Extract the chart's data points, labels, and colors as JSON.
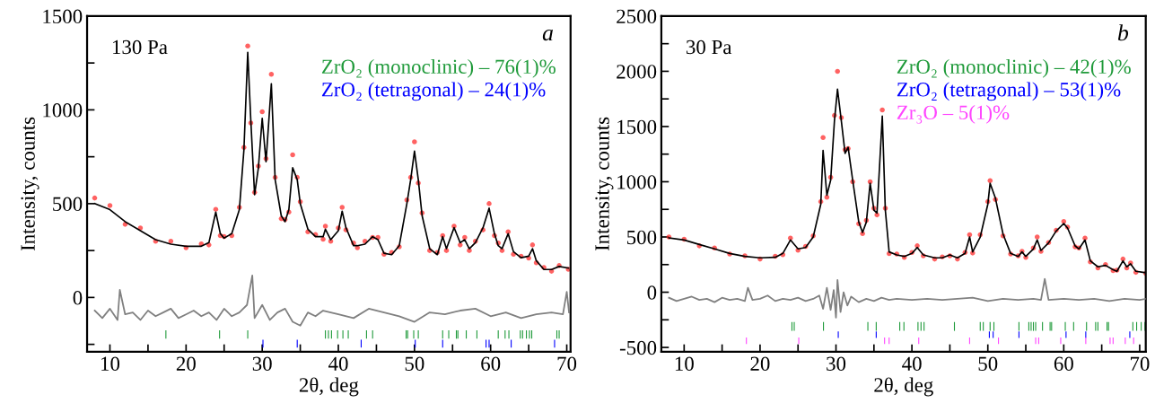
{
  "chart_data": [
    {
      "type": "scatter",
      "xlabel": "2θ, deg",
      "ylabel": "Intensity, counts",
      "annotations": [
        "130 Pa",
        "a"
      ],
      "xlim": [
        7,
        70.5
      ],
      "ylim": [
        -290,
        1500
      ],
      "xticks": [
        10,
        {
          "value": 15,
          "label": null
        },
        20,
        {
          "value": 25,
          "label": null
        },
        30,
        {
          "value": 35,
          "label": null
        },
        40,
        {
          "value": 45,
          "label": null
        },
        50,
        {
          "value": 55,
          "label": null
        },
        60,
        {
          "value": 65,
          "label": null
        },
        70
      ],
      "yticks": [
        {
          "value": -250,
          "label": null
        },
        0,
        {
          "value": 250,
          "label": null
        },
        500,
        {
          "value": 750,
          "label": null
        },
        1000,
        {
          "value": 1250,
          "label": null
        },
        1500
      ],
      "grid": false,
      "legend": "top right",
      "series": [
        {
          "marker": "circle",
          "color": "#ff2020",
          "x": [
            8,
            10,
            12,
            14,
            16,
            18,
            20,
            22,
            23,
            23.9,
            24.5,
            25,
            26,
            27,
            27.6,
            28.1,
            28.5,
            29,
            29.5,
            30,
            30.5,
            31.2,
            31.7,
            32.5,
            33,
            33.5,
            34,
            34.6,
            35,
            36,
            37,
            38,
            38.3,
            39,
            40,
            40.5,
            41,
            42,
            42.5,
            43.5,
            44.5,
            45.2,
            46,
            47,
            48,
            49,
            49.5,
            50,
            50.5,
            51,
            52,
            53,
            53.7,
            54.2,
            55.2,
            56,
            56.6,
            57.2,
            58,
            59,
            59.8,
            60.5,
            61,
            61.5,
            62.3,
            63,
            64,
            65,
            65.5,
            66,
            67,
            68,
            69,
            70.2
          ],
          "values": [
            530,
            490,
            390,
            370,
            300,
            300,
            265,
            285,
            280,
            470,
            330,
            325,
            330,
            480,
            800,
            1340,
            930,
            560,
            700,
            990,
            740,
            1190,
            640,
            420,
            415,
            455,
            760,
            640,
            510,
            350,
            335,
            310,
            380,
            300,
            370,
            480,
            360,
            290,
            265,
            300,
            320,
            320,
            230,
            240,
            270,
            520,
            640,
            830,
            610,
            450,
            250,
            240,
            330,
            250,
            380,
            280,
            320,
            250,
            300,
            360,
            500,
            330,
            290,
            250,
            350,
            230,
            220,
            210,
            280,
            185,
            160,
            140,
            170,
            150
          ]
        },
        {
          "type": "line",
          "marker": "none",
          "line_style": "solid",
          "color": "#000000",
          "x": [
            8,
            10,
            12,
            14,
            16,
            18,
            20,
            22,
            23,
            23.9,
            24.5,
            25,
            26,
            27,
            27.6,
            28.1,
            28.5,
            29,
            29.5,
            30,
            30.5,
            31.2,
            31.7,
            32.5,
            33,
            33.5,
            34,
            34.6,
            35,
            36,
            37,
            38,
            38.3,
            39,
            40,
            40.5,
            41,
            42,
            42.5,
            43.5,
            44.5,
            45.2,
            46,
            47,
            48,
            49,
            49.5,
            50,
            50.5,
            51,
            52,
            53,
            53.7,
            54.2,
            55.2,
            56,
            56.6,
            57.2,
            58,
            59,
            59.8,
            60.5,
            61,
            61.5,
            62.3,
            63,
            64,
            65,
            65.5,
            66,
            67,
            68,
            69,
            70.2
          ],
          "values": [
            500,
            468,
            404,
            356,
            308,
            284,
            273,
            273,
            292,
            455,
            340,
            316,
            340,
            468,
            788,
            1307,
            947,
            548,
            692,
            955,
            724,
            1139,
            628,
            436,
            404,
            468,
            692,
            628,
            500,
            364,
            324,
            324,
            364,
            308,
            356,
            460,
            372,
            276,
            276,
            284,
            324,
            308,
            236,
            228,
            276,
            500,
            628,
            780,
            628,
            436,
            260,
            228,
            324,
            260,
            372,
            292,
            308,
            260,
            292,
            372,
            476,
            340,
            276,
            260,
            340,
            244,
            212,
            220,
            260,
            196,
            149,
            149,
            165,
            157
          ]
        },
        {
          "type": "line",
          "marker": "none",
          "line_style": "solid",
          "color": "#808080",
          "x": [
            8,
            9,
            10,
            11,
            11.3,
            12,
            13,
            14,
            15,
            16,
            17,
            18,
            19,
            20,
            21,
            22,
            23,
            24,
            25,
            26,
            27,
            28,
            28.7,
            29,
            30,
            31,
            32,
            33,
            34,
            35,
            36,
            37,
            38,
            40,
            42,
            44,
            46,
            48,
            50,
            52,
            54,
            56,
            58,
            60,
            62,
            64,
            66,
            68,
            69.5,
            70,
            70.3
          ],
          "values": [
            -70,
            -110,
            -60,
            -120,
            40,
            -90,
            -80,
            -120,
            -70,
            -100,
            -80,
            -60,
            -110,
            -90,
            -70,
            -100,
            -80,
            -120,
            -60,
            -100,
            -80,
            -40,
            117,
            -110,
            -40,
            -120,
            -80,
            -60,
            -130,
            -150,
            -80,
            -100,
            -70,
            -90,
            -110,
            -60,
            -80,
            -100,
            -130,
            -80,
            -90,
            -70,
            -60,
            -100,
            -80,
            -110,
            -90,
            -80,
            -90,
            30,
            -80
          ]
        },
        {
          "type": "bar",
          "name": "ZrO₂ (monoclinic) – 76(1)%",
          "color": "#1f9a3a",
          "x": [
            17.35,
            24.4,
            28.1,
            38.3,
            38.7,
            39.1,
            39.9,
            40.6,
            41.3,
            43.7,
            44.5,
            48.9,
            49.1,
            49.9,
            50.5,
            53.7,
            54.5,
            55.5,
            55.7,
            56.8,
            58.2,
            61.0,
            61.9,
            62.4,
            63.9,
            64.2,
            64.7,
            65.1,
            65.4,
            68.7,
            69.0
          ],
          "values": [
            45,
            45,
            45,
            45,
            45,
            45,
            45,
            45,
            45,
            45,
            45,
            45,
            45,
            45,
            45,
            45,
            45,
            45,
            45,
            45,
            45,
            45,
            45,
            45,
            45,
            45,
            45,
            45,
            45,
            45,
            45
          ],
          "base": [
            -220,
            -220,
            -220,
            -220,
            -220,
            -220,
            -220,
            -220,
            -220,
            -220,
            -220,
            -220,
            -220,
            -220,
            -220,
            -220,
            -220,
            -220,
            -220,
            -220,
            -220,
            -220,
            -220,
            -220,
            -220,
            -220,
            -220,
            -220,
            -220,
            -220,
            -220
          ]
        },
        {
          "type": "bar",
          "name": "ZrO₂ (tetragonal) – 24(1)%",
          "color": "#0000ff",
          "x": [
            30.1,
            34.6,
            43.0,
            50.1,
            53.7,
            59.4,
            59.8,
            62.7,
            68.4
          ],
          "values": [
            42,
            42,
            42,
            42,
            42,
            42,
            42,
            42,
            42
          ],
          "base": [
            -267,
            -267,
            -267,
            -267,
            -267,
            -267,
            -267,
            -267,
            -267
          ]
        }
      ]
    },
    {
      "type": "scatter",
      "xlabel": "2θ, deg",
      "ylabel": "Intensity, counts",
      "annotations": [
        "30 Pa",
        "b"
      ],
      "xlim": [
        7,
        70.8
      ],
      "ylim": [
        -540,
        2500
      ],
      "xticks": [
        10,
        {
          "value": 15,
          "label": null
        },
        20,
        {
          "value": 25,
          "label": null
        },
        30,
        {
          "value": 35,
          "label": null
        },
        40,
        {
          "value": 45,
          "label": null
        },
        50,
        {
          "value": 55,
          "label": null
        },
        60,
        {
          "value": 65,
          "label": null
        },
        70
      ],
      "yticks": [
        -500,
        {
          "value": -250,
          "label": null
        },
        0,
        {
          "value": 250,
          "label": null
        },
        500,
        {
          "value": 750,
          "label": null
        },
        1000,
        {
          "value": 1250,
          "label": null
        },
        1500,
        {
          "value": 1750,
          "label": null
        },
        2000,
        {
          "value": 2250,
          "label": null
        },
        2500
      ],
      "grid": false,
      "legend": "top right",
      "series": [
        {
          "marker": "circle",
          "color": "#ff2020",
          "x": [
            8,
            10,
            12,
            14,
            16,
            18,
            20,
            22,
            23,
            24,
            25,
            26,
            27,
            28,
            28.3,
            28.8,
            29.3,
            29.8,
            30.2,
            30.7,
            31.2,
            31.6,
            32.2,
            33,
            33.5,
            34,
            34.5,
            35,
            35.4,
            36.1,
            36.5,
            37,
            38,
            39,
            40,
            40.7,
            41.5,
            43,
            44,
            45,
            46,
            47,
            47.6,
            48,
            49,
            50,
            50.3,
            51,
            52,
            53,
            54,
            54.5,
            55,
            56,
            56.5,
            57,
            58,
            59,
            60,
            60.5,
            61.5,
            62,
            62.8,
            63.5,
            64.5,
            65.5,
            66.5,
            67,
            67.8,
            68.3,
            68.8,
            69.5,
            70.8
          ],
          "values": [
            500,
            480,
            420,
            400,
            345,
            330,
            300,
            325,
            340,
            490,
            380,
            415,
            510,
            820,
            1400,
            860,
            1040,
            1600,
            2000,
            1580,
            1290,
            1300,
            1000,
            620,
            530,
            650,
            1000,
            760,
            700,
            1650,
            760,
            350,
            345,
            315,
            360,
            420,
            330,
            300,
            320,
            330,
            300,
            360,
            520,
            355,
            520,
            820,
            1010,
            840,
            510,
            345,
            330,
            370,
            315,
            400,
            500,
            370,
            450,
            560,
            640,
            590,
            410,
            400,
            490,
            275,
            220,
            250,
            195,
            200,
            300,
            220,
            265,
            180,
            170
          ]
        },
        {
          "type": "line",
          "marker": "none",
          "line_style": "solid",
          "color": "#000000",
          "x": [
            8,
            10,
            12,
            14,
            16,
            18,
            20,
            22,
            23,
            24,
            25,
            26,
            27,
            28,
            28.3,
            28.8,
            29.3,
            29.8,
            30.2,
            30.7,
            31.2,
            31.6,
            32.2,
            33,
            33.5,
            34,
            34.5,
            35,
            35.4,
            36.1,
            36.5,
            37,
            38,
            39,
            40,
            40.7,
            41.5,
            43,
            44,
            45,
            46,
            47,
            47.6,
            48,
            49,
            50,
            50.3,
            51,
            52,
            53,
            54,
            54.5,
            55,
            56,
            56.5,
            57,
            58,
            59,
            60,
            60.5,
            61.5,
            62,
            62.8,
            63.5,
            64.5,
            65.5,
            66.5,
            67,
            67.8,
            68.3,
            68.8,
            69.5,
            70.8
          ],
          "values": [
            492,
            473,
            432,
            392,
            351,
            324,
            311,
            316,
            351,
            473,
            392,
            405,
            500,
            797,
            1284,
            878,
            1014,
            1554,
            1838,
            1554,
            1257,
            1311,
            1014,
            635,
            541,
            635,
            986,
            743,
            716,
            1595,
            743,
            365,
            338,
            324,
            351,
            405,
            338,
            311,
            311,
            338,
            311,
            351,
            500,
            365,
            500,
            797,
            986,
            851,
            527,
            351,
            324,
            365,
            324,
            392,
            473,
            378,
            446,
            554,
            622,
            581,
            419,
            392,
            473,
            284,
            230,
            243,
            203,
            189,
            284,
            230,
            257,
            189,
            176
          ]
        },
        {
          "type": "line",
          "marker": "none",
          "line_style": "solid",
          "color": "#808080",
          "x": [
            8,
            9,
            10,
            11,
            12,
            13,
            14,
            15,
            16,
            17,
            18,
            18.4,
            19,
            20,
            21,
            22,
            23,
            24,
            25,
            26,
            27,
            27.8,
            28.3,
            28.8,
            29.3,
            29.7,
            30,
            30.2,
            30.6,
            31,
            31.5,
            32,
            33,
            34,
            35,
            36,
            37,
            38,
            40,
            42,
            44,
            46,
            48,
            50,
            52,
            54,
            56,
            57,
            57.5,
            58,
            60,
            62,
            64,
            66,
            68,
            70,
            70.8
          ],
          "values": [
            -50,
            -80,
            -60,
            -40,
            -70,
            -60,
            -90,
            -50,
            -70,
            -60,
            -80,
            40,
            -70,
            -60,
            -30,
            -80,
            -60,
            -70,
            -50,
            -80,
            -60,
            -30,
            -150,
            40,
            -160,
            20,
            -230,
            110,
            -180,
            0,
            -120,
            -40,
            -90,
            -60,
            -80,
            -50,
            -70,
            -60,
            -70,
            -60,
            -70,
            -60,
            -50,
            -80,
            -60,
            -70,
            -60,
            -70,
            120,
            -70,
            -60,
            -70,
            -60,
            -80,
            -60,
            -70,
            -60
          ]
        },
        {
          "type": "bar",
          "name": "ZrO₂ (monoclinic) – 42(1)%",
          "color": "#1f9a3a",
          "x": [
            24.2,
            24.5,
            28.35,
            34.2,
            35.3,
            38.4,
            38.95,
            40.8,
            41.2,
            41.6,
            45.6,
            49.0,
            49.4,
            50.3,
            50.8,
            54.1,
            55.4,
            55.7,
            56.0,
            56.3,
            57.2,
            58.2,
            58.4,
            60.2,
            61.3,
            63.0,
            64.2,
            64.5,
            65.7,
            65.9,
            69.1,
            69.6,
            70.2,
            70.7
          ],
          "values": [
            80,
            80,
            80,
            80,
            80,
            80,
            80,
            80,
            80,
            80,
            80,
            80,
            80,
            80,
            80,
            80,
            80,
            80,
            80,
            80,
            80,
            80,
            80,
            80,
            80,
            80,
            80,
            80,
            80,
            80,
            80,
            80,
            80,
            80
          ],
          "base": [
            -350,
            -350,
            -350,
            -350,
            -350,
            -350,
            -350,
            -350,
            -350,
            -350,
            -350,
            -350,
            -350,
            -350,
            -350,
            -350,
            -350,
            -350,
            -350,
            -350,
            -350,
            -350,
            -350,
            -350,
            -350,
            -350,
            -350,
            -350,
            -350,
            -350,
            -350,
            -350,
            -350,
            -350
          ]
        },
        {
          "type": "bar",
          "name": "ZrO₂ (tetragonal) – 53(1)%",
          "color": "#0000ff",
          "x": [
            30.3,
            35.3,
            50.2,
            50.7,
            54.1,
            60.3,
            62.9,
            68.7
          ],
          "values": [
            60,
            60,
            60,
            60,
            60,
            60,
            60,
            60
          ],
          "base": [
            -415,
            -415,
            -415,
            -415,
            -415,
            -415,
            -415,
            -415
          ]
        },
        {
          "type": "bar",
          "name": "Zr₃O – 5(1)%",
          "color": "#ff44ff",
          "x": [
            18.2,
            25.1,
            36.4,
            37.0,
            40.9,
            47.6,
            51.4,
            56.3,
            56.7,
            59.6,
            62.9,
            66.1,
            66.5,
            68.1,
            69.2
          ],
          "values": [
            60,
            60,
            60,
            60,
            60,
            60,
            60,
            60,
            60,
            60,
            60,
            60,
            60,
            60,
            60
          ],
          "base": [
            -470,
            -470,
            -470,
            -470,
            -470,
            -470,
            -470,
            -470,
            -470,
            -470,
            -470,
            -470,
            -470,
            -470,
            -470
          ]
        }
      ]
    }
  ]
}
